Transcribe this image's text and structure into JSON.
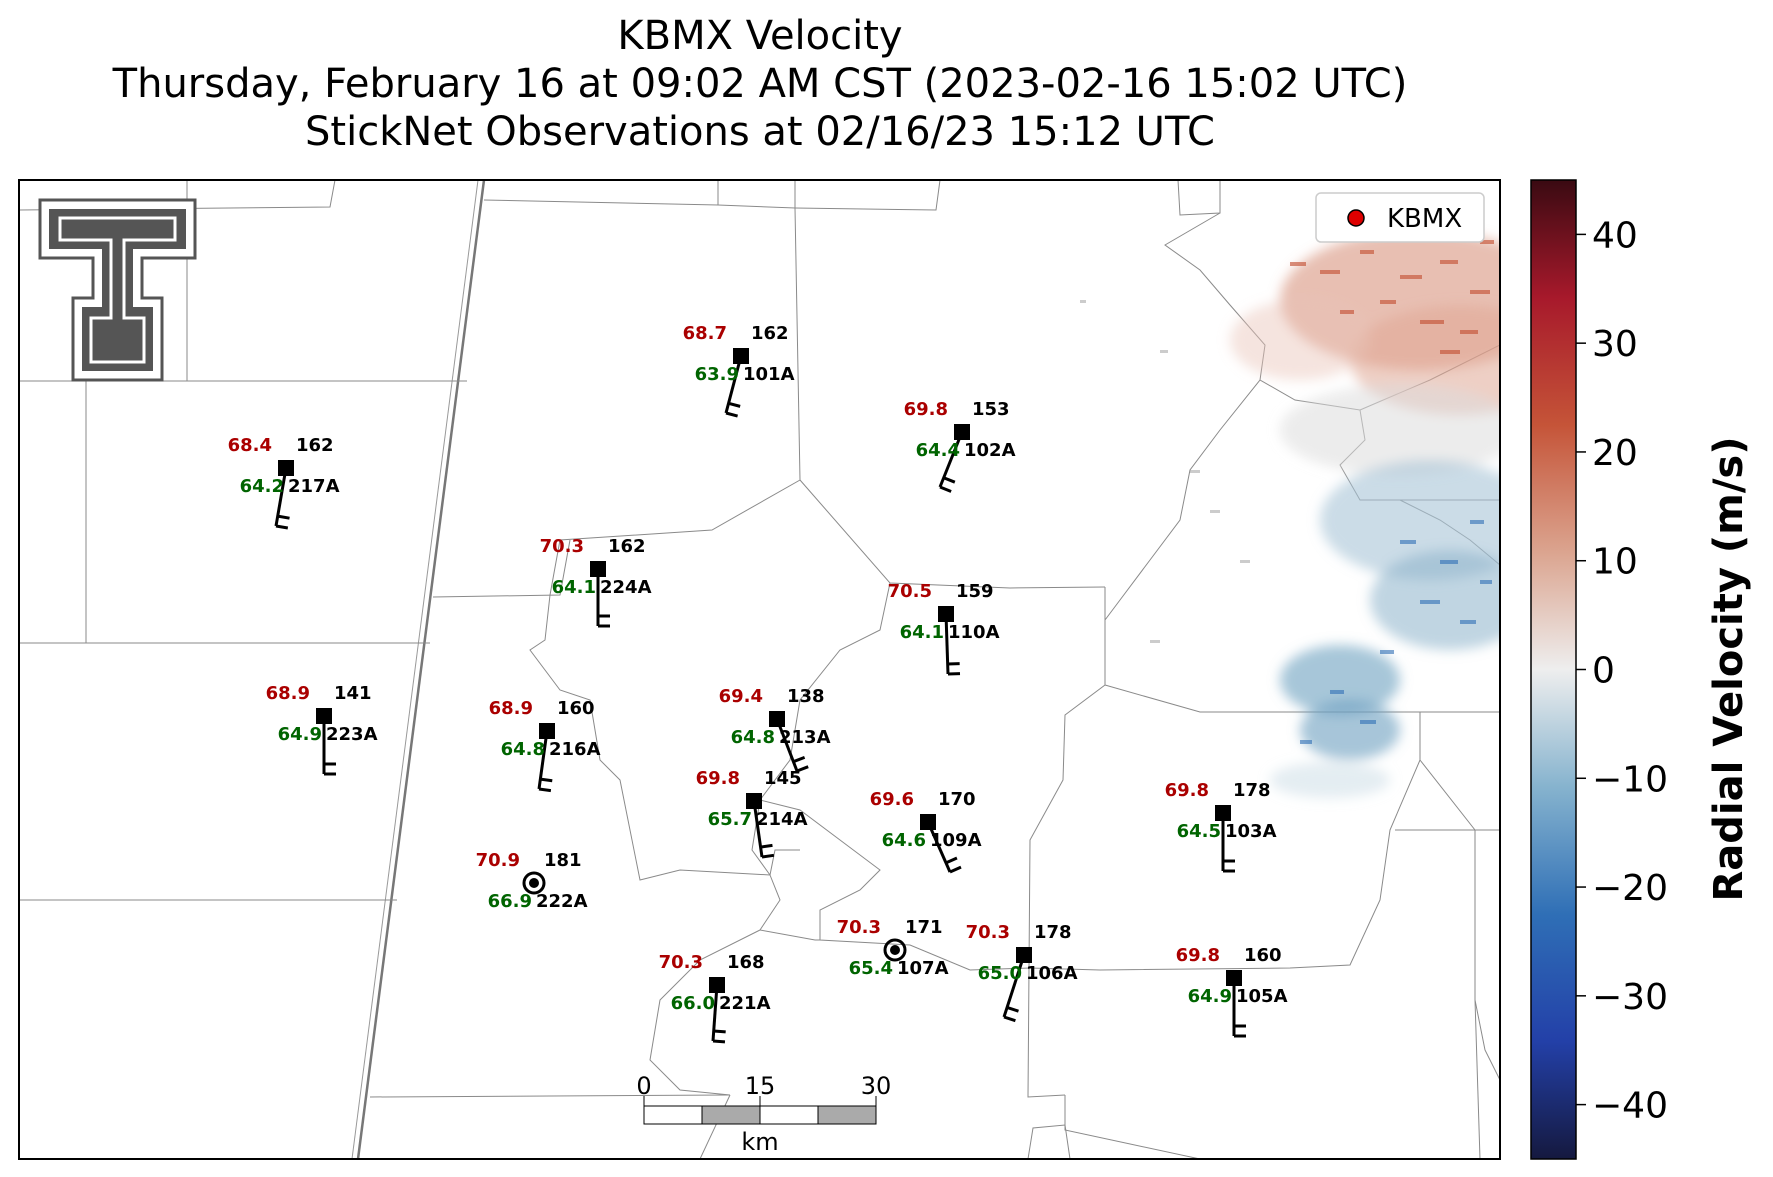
{
  "title": {
    "line1": "KBMX Velocity",
    "line2": "Thursday, February 16 at 09:02 AM CST (2023-02-16 15:02 UTC)",
    "line3": "StickNet Observations at 02/16/23 15:12 UTC"
  },
  "legend": {
    "label": "KBMX",
    "marker_color": "#dd0000"
  },
  "colorbar": {
    "label": "Radial Velocity (m/s)",
    "ticks": [
      "40",
      "30",
      "20",
      "10",
      "0",
      "−10",
      "−20",
      "−30",
      "−40"
    ],
    "range": [
      -45,
      45
    ]
  },
  "scale_bar": {
    "labels": [
      "0",
      "15",
      "30"
    ],
    "unit": "km"
  },
  "colors": {
    "temperature": "#aa0000",
    "dewpoint": "#006400",
    "station": "#000000"
  },
  "stations": [
    {
      "id": "101A",
      "temp": "68.7",
      "dew": "63.9",
      "pressure": "162"
    },
    {
      "id": "217A",
      "temp": "68.4",
      "dew": "64.2",
      "pressure": "162"
    },
    {
      "id": "102A",
      "temp": "69.8",
      "dew": "64.4",
      "pressure": "153"
    },
    {
      "id": "224A",
      "temp": "70.3",
      "dew": "64.1",
      "pressure": "162"
    },
    {
      "id": "110A",
      "temp": "70.5",
      "dew": "64.1",
      "pressure": "159"
    },
    {
      "id": "223A",
      "temp": "68.9",
      "dew": "64.9",
      "pressure": "141"
    },
    {
      "id": "216A",
      "temp": "68.9",
      "dew": "64.8",
      "pressure": "160"
    },
    {
      "id": "213A",
      "temp": "69.4",
      "dew": "64.8",
      "pressure": "138"
    },
    {
      "id": "214A",
      "temp": "69.8",
      "dew": "65.7",
      "pressure": "145"
    },
    {
      "id": "109A",
      "temp": "69.6",
      "dew": "64.6",
      "pressure": "170"
    },
    {
      "id": "103A",
      "temp": "69.8",
      "dew": "64.5",
      "pressure": "178"
    },
    {
      "id": "222A",
      "temp": "70.9",
      "dew": "66.9",
      "pressure": "181"
    },
    {
      "id": "107A",
      "temp": "70.3",
      "dew": "65.4",
      "pressure": "171"
    },
    {
      "id": "106A",
      "temp": "70.3",
      "dew": "65.0",
      "pressure": "178"
    },
    {
      "id": "221A",
      "temp": "70.3",
      "dew": "66.0",
      "pressure": "168"
    },
    {
      "id": "105A",
      "temp": "69.8",
      "dew": "64.9",
      "pressure": "160"
    }
  ]
}
